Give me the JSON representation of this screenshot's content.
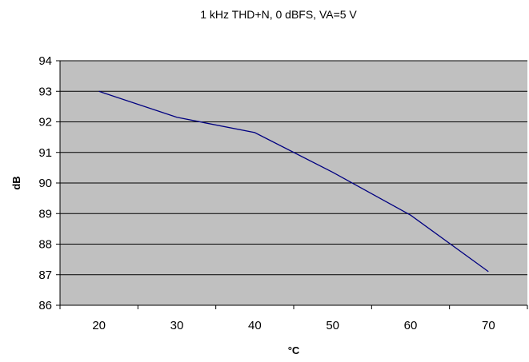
{
  "chart_data": {
    "type": "line",
    "title": "1 kHz THD+N, 0 dBFS, VA=5 V",
    "xlabel": "°C",
    "ylabel": "dB",
    "categories": [
      "20",
      "30",
      "40",
      "50",
      "60",
      "70"
    ],
    "series": [
      {
        "values": [
          93.0,
          92.15,
          91.65,
          90.35,
          88.95,
          87.1
        ]
      }
    ],
    "ylim": [
      86,
      94
    ],
    "yticks": [
      "86",
      "87",
      "88",
      "89",
      "90",
      "91",
      "92",
      "93",
      "94"
    ],
    "grid": true,
    "legend": "none",
    "colors": {
      "plot_bg": "#c0c0c0",
      "line": "#000080",
      "grid": "#000000"
    }
  }
}
